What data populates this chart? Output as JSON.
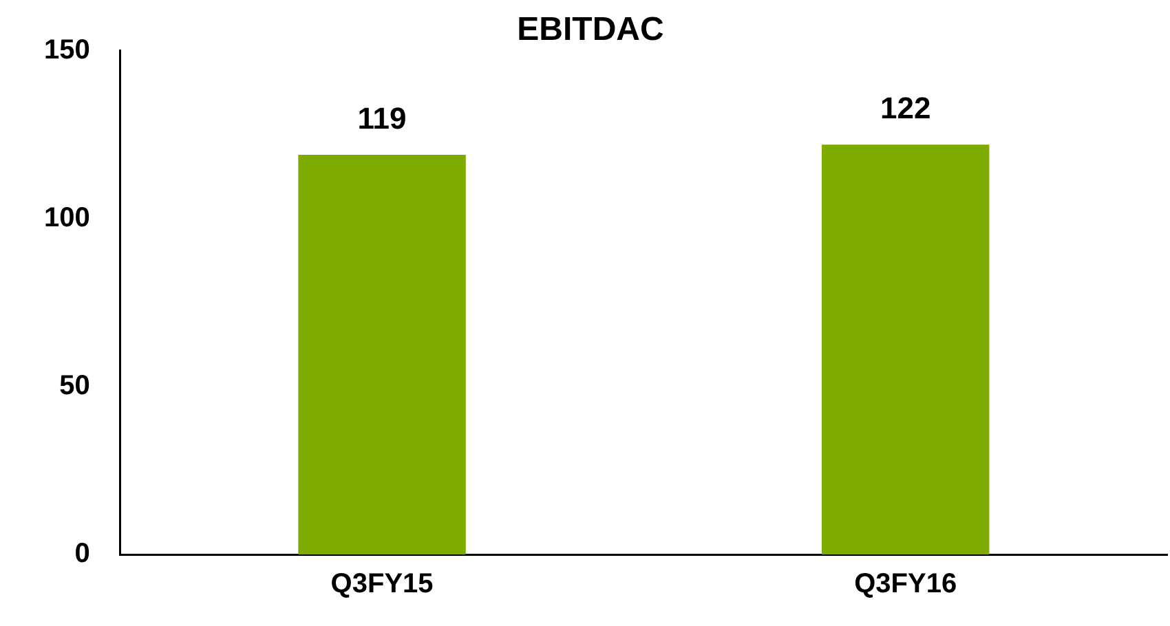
{
  "chart_data": {
    "type": "bar",
    "title": "EBITDAC",
    "categories": [
      "Q3FY15",
      "Q3FY16"
    ],
    "values": [
      119,
      122
    ],
    "color": "#7dab00",
    "ylim": [
      0,
      150
    ],
    "yticks": [
      0,
      50,
      100,
      150
    ],
    "grid": false,
    "data_labels": true
  }
}
